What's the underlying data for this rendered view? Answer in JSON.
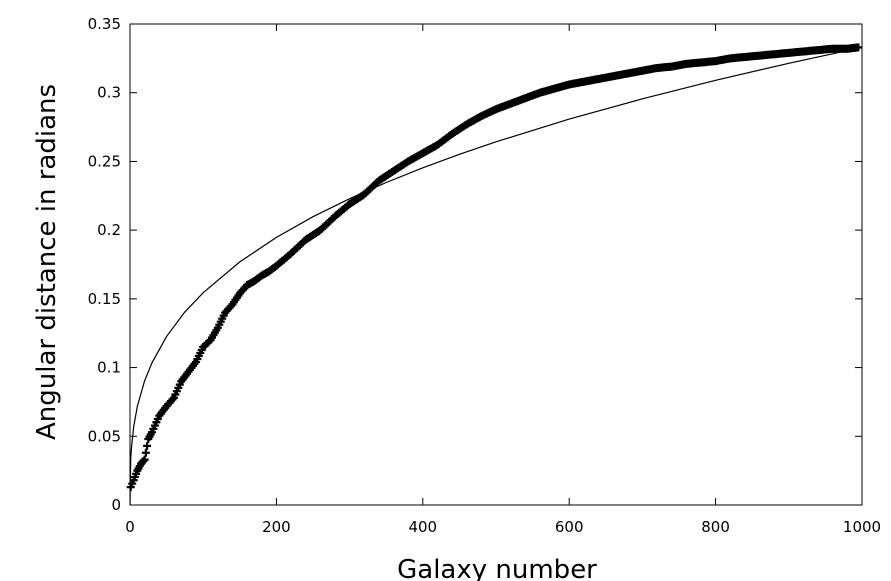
{
  "chart_data": {
    "type": "scatter",
    "title": "",
    "xlabel": "Galaxy number",
    "ylabel": "Angular distance in radians",
    "xlim": [
      0,
      1000
    ],
    "ylim": [
      0,
      0.35
    ],
    "xticks": [
      0,
      200,
      400,
      600,
      800,
      1000
    ],
    "xtick_labels": [
      "0",
      "200",
      "400",
      "600",
      "800",
      "1000"
    ],
    "yticks": [
      0,
      0.05,
      0.1,
      0.15,
      0.2,
      0.25,
      0.3,
      0.35
    ],
    "ytick_labels": [
      "0",
      "0.05",
      "0.1",
      "0.15",
      "0.2",
      "0.25",
      "0.3",
      "0.35"
    ],
    "grid": false,
    "legend": "none",
    "series": [
      {
        "style": "markers",
        "marker": "plus",
        "color": "#000000",
        "x": [
          1,
          5,
          10,
          15,
          20,
          25,
          30,
          40,
          50,
          60,
          70,
          80,
          90,
          100,
          110,
          120,
          130,
          140,
          150,
          160,
          170,
          180,
          190,
          200,
          220,
          240,
          260,
          280,
          300,
          320,
          340,
          360,
          380,
          400,
          420,
          440,
          460,
          480,
          500,
          520,
          540,
          560,
          580,
          600,
          620,
          640,
          660,
          680,
          700,
          720,
          740,
          760,
          780,
          800,
          820,
          840,
          860,
          880,
          900,
          920,
          940,
          960,
          980,
          995
        ],
        "y": [
          0.013,
          0.018,
          0.025,
          0.03,
          0.033,
          0.048,
          0.053,
          0.065,
          0.072,
          0.078,
          0.09,
          0.097,
          0.104,
          0.115,
          0.12,
          0.129,
          0.14,
          0.146,
          0.154,
          0.16,
          0.163,
          0.167,
          0.17,
          0.174,
          0.183,
          0.193,
          0.2,
          0.21,
          0.219,
          0.226,
          0.236,
          0.243,
          0.25,
          0.256,
          0.262,
          0.27,
          0.277,
          0.283,
          0.288,
          0.292,
          0.296,
          0.3,
          0.303,
          0.306,
          0.308,
          0.31,
          0.312,
          0.314,
          0.316,
          0.318,
          0.319,
          0.321,
          0.322,
          0.323,
          0.325,
          0.326,
          0.327,
          0.328,
          0.329,
          0.33,
          0.331,
          0.332,
          0.332,
          0.333
        ]
      },
      {
        "style": "line",
        "color": "#000000",
        "function": "y = 0.0333 * x^(1/3)",
        "x": [
          0,
          1,
          2,
          5,
          10,
          20,
          30,
          50,
          75,
          100,
          150,
          200,
          250,
          300,
          350,
          400,
          450,
          500,
          600,
          700,
          800,
          900,
          1000
        ],
        "y": [
          0,
          0.0333,
          0.042,
          0.057,
          0.0717,
          0.0904,
          0.1035,
          0.1227,
          0.1405,
          0.1545,
          0.1769,
          0.1947,
          0.2098,
          0.2229,
          0.2347,
          0.2454,
          0.2552,
          0.2643,
          0.2808,
          0.2956,
          0.309,
          0.3214,
          0.333
        ]
      }
    ]
  }
}
